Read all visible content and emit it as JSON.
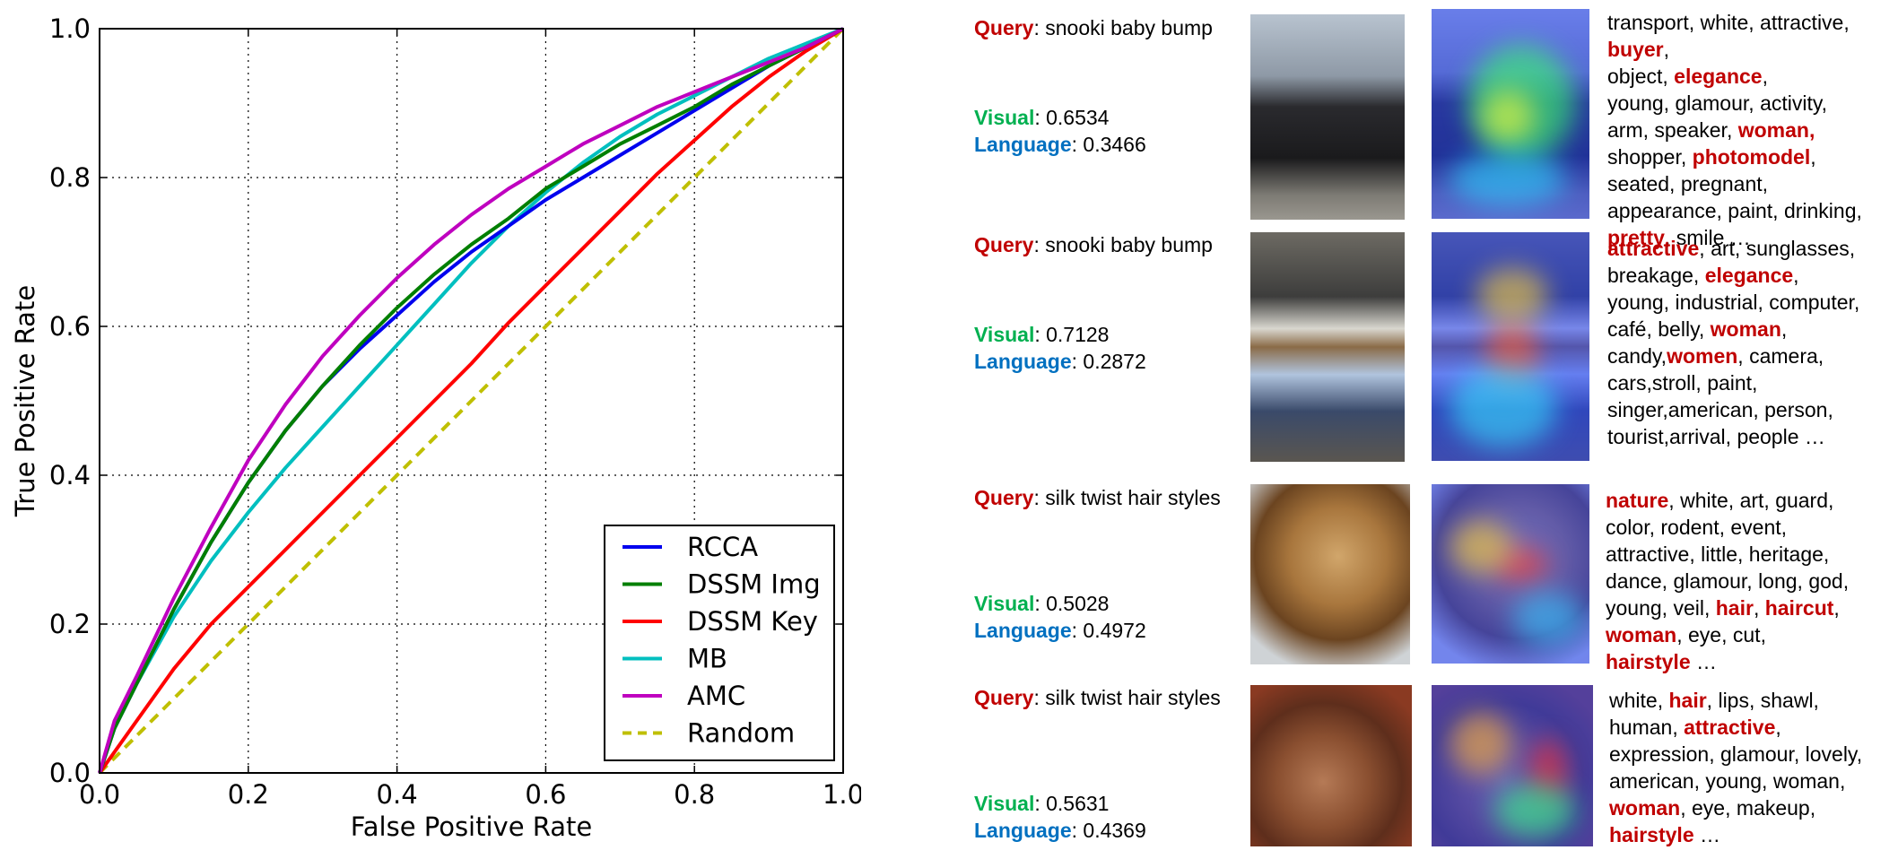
{
  "chart_data": {
    "type": "line",
    "xlabel": "False Positive Rate",
    "ylabel": "True Positive Rate",
    "xlim": [
      0.0,
      1.0
    ],
    "ylim": [
      0.0,
      1.0
    ],
    "xticks": [
      "0.0",
      "0.2",
      "0.4",
      "0.6",
      "0.8",
      "1.0"
    ],
    "yticks": [
      "0.0",
      "0.2",
      "0.4",
      "0.6",
      "0.8",
      "1.0"
    ],
    "grid": true,
    "legend_position": "bottom-right",
    "series": [
      {
        "name": "RCCA",
        "color": "#0000ee",
        "dash": false,
        "x": [
          0,
          0.02,
          0.05,
          0.1,
          0.15,
          0.2,
          0.25,
          0.3,
          0.35,
          0.4,
          0.45,
          0.5,
          0.55,
          0.6,
          0.65,
          0.7,
          0.75,
          0.8,
          0.85,
          0.9,
          0.95,
          1.0
        ],
        "y": [
          0,
          0.06,
          0.12,
          0.22,
          0.31,
          0.39,
          0.46,
          0.52,
          0.57,
          0.615,
          0.66,
          0.7,
          0.735,
          0.77,
          0.8,
          0.83,
          0.86,
          0.89,
          0.92,
          0.95,
          0.975,
          1.0
        ]
      },
      {
        "name": "DSSM Img",
        "color": "#007f00",
        "dash": false,
        "x": [
          0,
          0.02,
          0.05,
          0.1,
          0.15,
          0.2,
          0.25,
          0.3,
          0.35,
          0.4,
          0.45,
          0.5,
          0.55,
          0.6,
          0.65,
          0.7,
          0.75,
          0.8,
          0.85,
          0.9,
          0.95,
          1.0
        ],
        "y": [
          0,
          0.06,
          0.12,
          0.22,
          0.31,
          0.39,
          0.46,
          0.52,
          0.575,
          0.625,
          0.67,
          0.71,
          0.745,
          0.785,
          0.815,
          0.845,
          0.87,
          0.895,
          0.925,
          0.95,
          0.975,
          1.0
        ]
      },
      {
        "name": "DSSM Key",
        "color": "#ff0000",
        "dash": false,
        "x": [
          0,
          0.05,
          0.1,
          0.15,
          0.2,
          0.25,
          0.3,
          0.35,
          0.4,
          0.45,
          0.5,
          0.55,
          0.6,
          0.65,
          0.7,
          0.75,
          0.8,
          0.85,
          0.9,
          0.95,
          1.0
        ],
        "y": [
          0,
          0.07,
          0.14,
          0.2,
          0.25,
          0.3,
          0.35,
          0.4,
          0.45,
          0.5,
          0.55,
          0.605,
          0.655,
          0.705,
          0.755,
          0.805,
          0.85,
          0.895,
          0.935,
          0.97,
          1.0
        ]
      },
      {
        "name": "MB",
        "color": "#00bfbf",
        "dash": false,
        "x": [
          0,
          0.02,
          0.05,
          0.1,
          0.15,
          0.2,
          0.25,
          0.3,
          0.35,
          0.4,
          0.45,
          0.5,
          0.55,
          0.6,
          0.65,
          0.7,
          0.75,
          0.8,
          0.85,
          0.9,
          0.95,
          1.0
        ],
        "y": [
          0,
          0.06,
          0.12,
          0.21,
          0.285,
          0.35,
          0.41,
          0.465,
          0.52,
          0.575,
          0.63,
          0.685,
          0.735,
          0.78,
          0.82,
          0.855,
          0.885,
          0.91,
          0.935,
          0.96,
          0.98,
          1.0
        ]
      },
      {
        "name": "AMC",
        "color": "#bf00bf",
        "dash": false,
        "x": [
          0,
          0.02,
          0.05,
          0.1,
          0.15,
          0.2,
          0.25,
          0.3,
          0.35,
          0.4,
          0.45,
          0.5,
          0.55,
          0.6,
          0.65,
          0.7,
          0.75,
          0.8,
          0.85,
          0.9,
          0.95,
          1.0
        ],
        "y": [
          0,
          0.07,
          0.13,
          0.235,
          0.33,
          0.42,
          0.495,
          0.56,
          0.615,
          0.665,
          0.71,
          0.75,
          0.785,
          0.815,
          0.845,
          0.87,
          0.895,
          0.915,
          0.935,
          0.955,
          0.975,
          1.0
        ]
      },
      {
        "name": "Random",
        "color": "#bfbf00",
        "dash": true,
        "x": [
          0,
          1.0
        ],
        "y": [
          0,
          1.0
        ]
      }
    ]
  },
  "examples": [
    {
      "query_key": "Query",
      "query": ": snooki baby bump",
      "visual_key": "Visual",
      "visual": ": 0.6534",
      "language_key": "Language",
      "language": ": 0.3466",
      "tags": [
        {
          "t": "transport, ",
          "h": false
        },
        {
          "t": "white, ",
          "h": false
        },
        {
          "t": "attractive,",
          "h": false
        },
        {
          "t": "buyer",
          "h": true
        },
        {
          "t": ", ",
          "h": false
        },
        {
          "t": "object, ",
          "h": false
        },
        {
          "t": "elegance",
          "h": true
        },
        {
          "t": ",",
          "h": false
        },
        {
          "t": "young, ",
          "h": false
        },
        {
          "t": "glamour, ",
          "h": false
        },
        {
          "t": "activity,",
          "h": false
        },
        {
          "t": "arm, ",
          "h": false
        },
        {
          "t": "speaker, ",
          "h": false
        },
        {
          "t": "woman",
          "h": true
        },
        {
          "t": ",",
          "h": true
        },
        {
          "t": "shopper, ",
          "h": false
        },
        {
          "t": "photomodel",
          "h": true
        },
        {
          "t": ",",
          "h": false
        },
        {
          "t": "seated, ",
          "h": false
        },
        {
          "t": "pregnant,",
          "h": false
        },
        {
          "t": "appearance, ",
          "h": false
        },
        {
          "t": "paint, ",
          "h": false
        },
        {
          "t": "drinking,",
          "h": false
        },
        {
          "t": "pretty",
          "h": true
        },
        {
          "t": ", ",
          "h": false
        },
        {
          "t": "smile …",
          "h": false
        }
      ]
    },
    {
      "query_key": "Query",
      "query": ": snooki baby bump",
      "visual_key": "Visual",
      "visual": ": 0.7128",
      "language_key": "Language",
      "language": ": 0.2872",
      "tags": [
        {
          "t": "attractive",
          "h": true
        },
        {
          "t": ", ",
          "h": false
        },
        {
          "t": "art, ",
          "h": false
        },
        {
          "t": "sunglasses,",
          "h": false
        },
        {
          "t": "breakage, ",
          "h": false
        },
        {
          "t": "elegance",
          "h": true
        },
        {
          "t": ",",
          "h": false
        },
        {
          "t": "young, ",
          "h": false
        },
        {
          "t": "industrial, ",
          "h": false
        },
        {
          "t": "computer,",
          "h": false
        },
        {
          "t": "café, ",
          "h": false
        },
        {
          "t": "belly, ",
          "h": false
        },
        {
          "t": "woman",
          "h": true
        },
        {
          "t": ", ",
          "h": false
        },
        {
          "t": "candy,",
          "h": false
        },
        {
          "t": "women",
          "h": true
        },
        {
          "t": ", ",
          "h": false
        },
        {
          "t": "camera, ",
          "h": false
        },
        {
          "t": "cars,",
          "h": false
        },
        {
          "t": "stroll, ",
          "h": false
        },
        {
          "t": "paint, ",
          "h": false
        },
        {
          "t": "singer,",
          "h": false
        },
        {
          "t": "american, ",
          "h": false
        },
        {
          "t": "person, ",
          "h": false
        },
        {
          "t": "tourist,",
          "h": false
        },
        {
          "t": "arrival, ",
          "h": false
        },
        {
          "t": "people …",
          "h": false
        }
      ]
    },
    {
      "query_key": "Query",
      "query": ": silk twist hair styles",
      "visual_key": "Visual",
      "visual": ": 0.5028",
      "language_key": "Language",
      "language": ": 0.4972",
      "tags": [
        {
          "t": "nature",
          "h": true
        },
        {
          "t": ", ",
          "h": false
        },
        {
          "t": "white, ",
          "h": false
        },
        {
          "t": "art, ",
          "h": false
        },
        {
          "t": "guard,",
          "h": false
        },
        {
          "t": "color, ",
          "h": false
        },
        {
          "t": "rodent, ",
          "h": false
        },
        {
          "t": "event,",
          "h": false
        },
        {
          "t": "attractive, ",
          "h": false
        },
        {
          "t": "little, ",
          "h": false
        },
        {
          "t": "heritage,",
          "h": false
        },
        {
          "t": "dance, ",
          "h": false
        },
        {
          "t": "glamour, ",
          "h": false
        },
        {
          "t": "long, ",
          "h": false
        },
        {
          "t": "god,",
          "h": false
        },
        {
          "t": "young, ",
          "h": false
        },
        {
          "t": "veil, ",
          "h": false
        },
        {
          "t": "hair",
          "h": true
        },
        {
          "t": ", ",
          "h": false
        },
        {
          "t": "haircut",
          "h": true
        },
        {
          "t": ",",
          "h": false
        },
        {
          "t": "woman",
          "h": true
        },
        {
          "t": ", ",
          "h": false
        },
        {
          "t": "eye, ",
          "h": false
        },
        {
          "t": "cut,",
          "h": false
        },
        {
          "t": "hairstyle",
          "h": true
        },
        {
          "t": " …",
          "h": false
        }
      ]
    },
    {
      "query_key": "Query",
      "query": ": silk twist hair styles",
      "visual_key": "Visual",
      "visual": ": 0.5631",
      "language_key": "Language",
      "language": ": 0.4369",
      "tags": [
        {
          "t": "white, ",
          "h": false
        },
        {
          "t": "hair",
          "h": true
        },
        {
          "t": ", ",
          "h": false
        },
        {
          "t": "lips, ",
          "h": false
        },
        {
          "t": "shawl,",
          "h": false
        },
        {
          "t": "human, ",
          "h": false
        },
        {
          "t": "attractive",
          "h": true
        },
        {
          "t": ",",
          "h": false
        },
        {
          "t": "expression, ",
          "h": false
        },
        {
          "t": "glamour, ",
          "h": false
        },
        {
          "t": "lovely,",
          "h": false
        },
        {
          "t": "american, ",
          "h": false
        },
        {
          "t": "young, ",
          "h": false
        },
        {
          "t": "woman,",
          "h": false
        },
        {
          "t": "woman",
          "h": true
        },
        {
          "t": ", ",
          "h": false
        },
        {
          "t": "eye, ",
          "h": false
        },
        {
          "t": "makeup,",
          "h": false
        },
        {
          "t": "hairstyle",
          "h": true
        },
        {
          "t": " …",
          "h": false
        }
      ]
    }
  ]
}
